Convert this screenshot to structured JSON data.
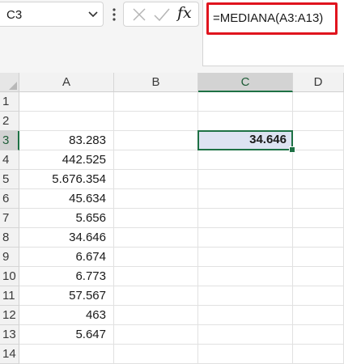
{
  "formula_bar": {
    "name_box": "C3",
    "fx_label": "fx",
    "formula": "=MEDIANA(A3:A13)"
  },
  "grid": {
    "columns": [
      "A",
      "B",
      "C",
      "D"
    ],
    "selected_column": "C",
    "rows": [
      "1",
      "2",
      "3",
      "4",
      "5",
      "6",
      "7",
      "8",
      "9",
      "10",
      "11",
      "12",
      "13",
      "14"
    ],
    "selected_row": "3",
    "column_a_values": [
      "",
      "",
      "83.283",
      "442.525",
      "5.676.354",
      "45.634",
      "5.656",
      "34.646",
      "6.674",
      "6.773",
      "57.567",
      "463",
      "5.647",
      ""
    ],
    "active_cell": {
      "ref": "C3",
      "value": "34.646"
    }
  },
  "colors": {
    "highlight_border": "#e0141e",
    "selection_green": "#1e7145",
    "active_cell_fill": "#dde3f2"
  }
}
